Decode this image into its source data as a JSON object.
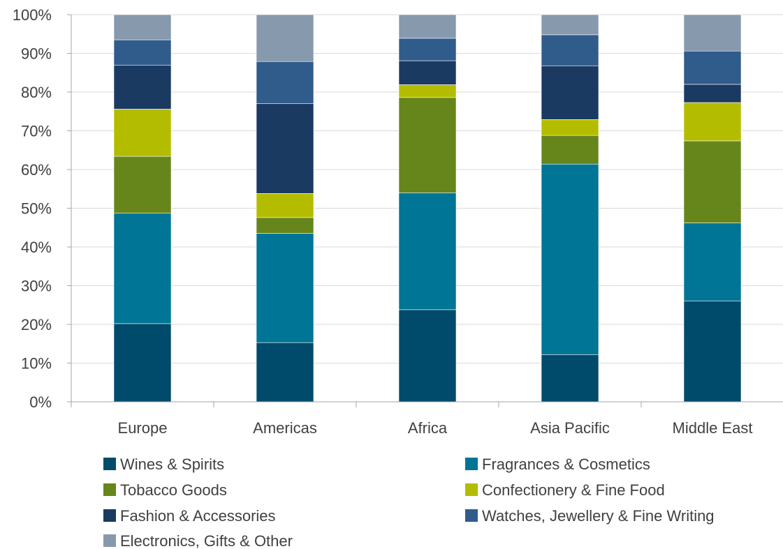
{
  "chart_data": {
    "type": "bar",
    "stacked": true,
    "percent": true,
    "categories": [
      "Europe",
      "Americas",
      "Africa",
      "Asia Pacific",
      "Middle East"
    ],
    "yticks": [
      "0%",
      "10%",
      "20%",
      "30%",
      "40%",
      "50%",
      "60%",
      "70%",
      "80%",
      "90%",
      "100%"
    ],
    "ylim": [
      0,
      100
    ],
    "grid": true,
    "legend_position": "bottom",
    "series": [
      {
        "name": "Wines & Spirits",
        "color": "#004B6B",
        "values": [
          20.2,
          15.3,
          23.8,
          12.2,
          26.0
        ]
      },
      {
        "name": "Fragrances & Cosmetics",
        "color": "#007596",
        "values": [
          28.5,
          28.2,
          30.2,
          49.2,
          20.2
        ]
      },
      {
        "name": "Tobacco Goods",
        "color": "#66861B",
        "values": [
          14.7,
          4.1,
          24.6,
          7.4,
          21.2
        ]
      },
      {
        "name": "Confectionery & Fine Food",
        "color": "#B4BC00",
        "values": [
          12.2,
          6.2,
          3.3,
          4.1,
          9.9
        ]
      },
      {
        "name": "Fashion & Accessories",
        "color": "#1B3A62",
        "values": [
          11.3,
          23.2,
          6.2,
          13.9,
          4.7
        ]
      },
      {
        "name": "Watches, Jewellery & Fine Writing",
        "color": "#305C8C",
        "values": [
          6.6,
          10.9,
          5.8,
          8.0,
          8.6
        ]
      },
      {
        "name": "Electronics, Gifts & Other",
        "color": "#8799AD",
        "values": [
          6.5,
          12.1,
          6.1,
          5.2,
          9.4
        ]
      }
    ]
  }
}
